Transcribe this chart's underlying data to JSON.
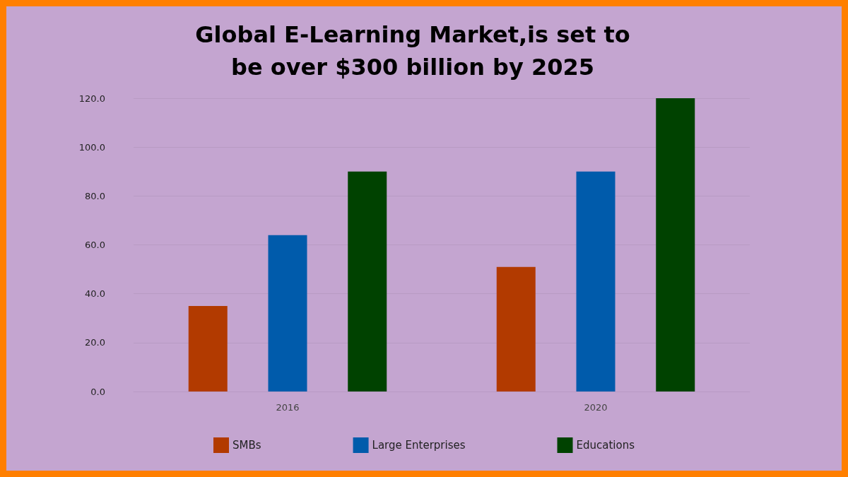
{
  "chart_data": {
    "type": "bar",
    "title": "Global E-Learning Market,is set to\nbe over $300 billion by 2025",
    "categories": [
      "2016",
      "2020"
    ],
    "series": [
      {
        "name": "SMBs",
        "color": "#b23a00",
        "values": [
          35,
          51
        ]
      },
      {
        "name": "Large Enterprises",
        "color": "#005bab",
        "values": [
          64,
          90
        ]
      },
      {
        "name": "Educations",
        "color": "#004200",
        "values": [
          90,
          120
        ]
      }
    ],
    "ylim": [
      0,
      120
    ],
    "yticks": [
      {
        "value": 0,
        "label": "0.0"
      },
      {
        "value": 20,
        "label": "20.0"
      },
      {
        "value": 40,
        "label": "40.0"
      },
      {
        "value": 60,
        "label": "60.0"
      },
      {
        "value": 80,
        "label": "80.0"
      },
      {
        "value": 100,
        "label": "100.0"
      },
      {
        "value": 120,
        "label": "120.0"
      }
    ],
    "grid": "y",
    "legend": "bottom"
  }
}
